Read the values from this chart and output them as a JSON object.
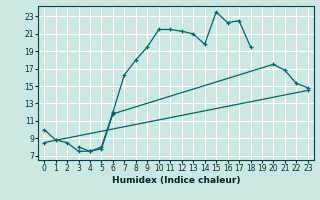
{
  "xlabel": "Humidex (Indice chaleur)",
  "bg_color": "#cce8e4",
  "grid_color": "#ffffff",
  "line_color": "#006666",
  "xlim": [
    -0.5,
    23.5
  ],
  "ylim": [
    6.5,
    24.2
  ],
  "xticks": [
    0,
    1,
    2,
    3,
    4,
    5,
    6,
    7,
    8,
    9,
    10,
    11,
    12,
    13,
    14,
    15,
    16,
    17,
    18,
    19,
    20,
    21,
    22,
    23
  ],
  "yticks": [
    7,
    9,
    11,
    13,
    15,
    17,
    19,
    21,
    23
  ],
  "curve1": {
    "x": [
      0,
      1,
      2,
      3,
      4,
      5,
      6,
      7,
      8,
      9,
      10,
      11,
      12,
      13,
      14,
      15,
      16,
      17,
      18
    ],
    "y": [
      10.0,
      8.8,
      8.5,
      7.5,
      7.5,
      8.0,
      12.0,
      16.3,
      18.0,
      19.5,
      21.5,
      21.5,
      21.3,
      21.0,
      19.8,
      23.5,
      22.3,
      22.5,
      19.5
    ]
  },
  "curve2": {
    "x": [
      3,
      4,
      5,
      6,
      20,
      21,
      22,
      23
    ],
    "y": [
      8.0,
      7.5,
      7.8,
      11.8,
      17.5,
      16.8,
      15.3,
      14.8
    ]
  },
  "curve3": {
    "x": [
      0,
      23
    ],
    "y": [
      8.5,
      14.5
    ]
  }
}
